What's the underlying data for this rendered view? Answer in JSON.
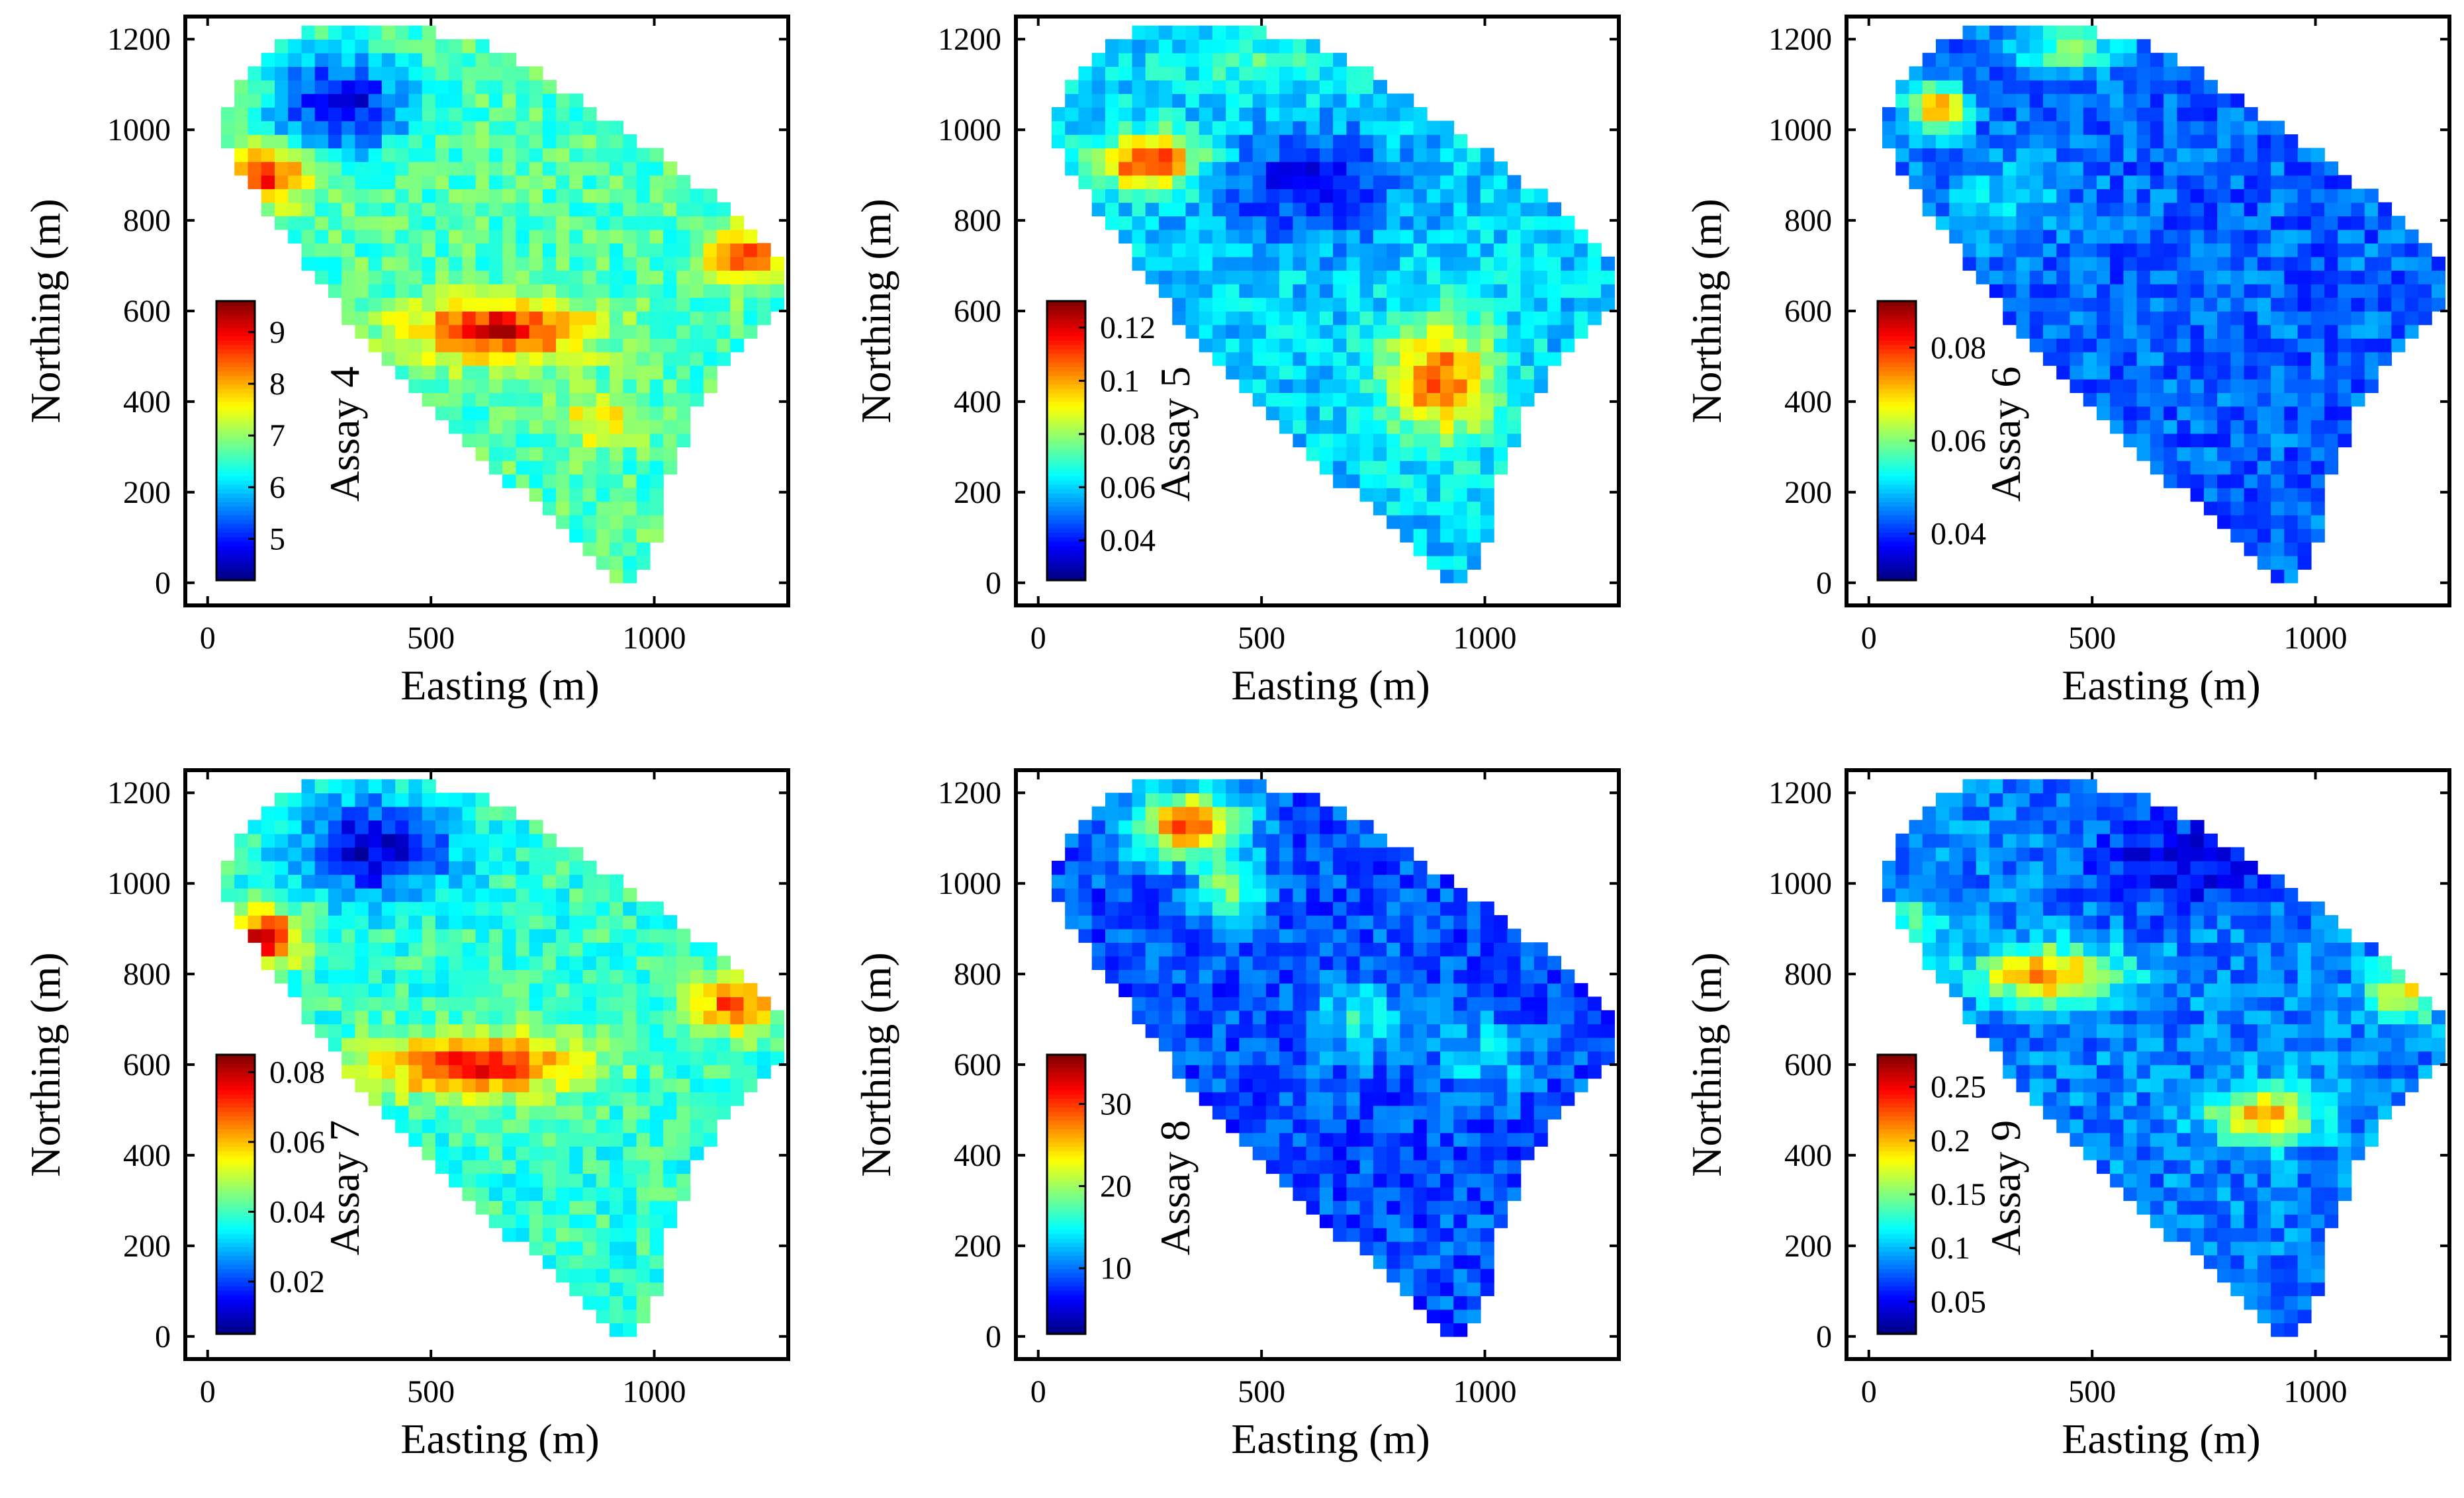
{
  "chart_data": [
    {
      "type": "heatmap",
      "title": "",
      "xlabel": "Easting (m)",
      "ylabel": "Northing (m)",
      "xlim": [
        -50,
        1300
      ],
      "ylim": [
        -50,
        1250
      ],
      "xticks": [
        0,
        500,
        1000
      ],
      "yticks": [
        0,
        200,
        400,
        600,
        800,
        1000,
        1200
      ],
      "colorbar": {
        "label": "Assay 4",
        "range": [
          4.2,
          9.6
        ],
        "ticks": [
          5,
          6,
          7,
          8,
          9
        ],
        "tick_labels": [
          "5",
          "6",
          "7",
          "8",
          "9"
        ]
      },
      "colormap": "jet",
      "field": {
        "base": 0.45,
        "anomalies": [
          {
            "x": 130,
            "y": 900,
            "amp": 0.45,
            "sx": 90,
            "sy": 60
          },
          {
            "x": 650,
            "y": 560,
            "amp": 0.45,
            "sx": 200,
            "sy": 70
          },
          {
            "x": 1200,
            "y": 720,
            "amp": 0.4,
            "sx": 80,
            "sy": 60
          },
          {
            "x": 300,
            "y": 1060,
            "amp": -0.35,
            "sx": 150,
            "sy": 110
          },
          {
            "x": 880,
            "y": 360,
            "amp": 0.2,
            "sx": 90,
            "sy": 60
          }
        ]
      }
    },
    {
      "type": "heatmap",
      "title": "",
      "xlabel": "Easting (m)",
      "ylabel": "Northing (m)",
      "xlim": [
        -50,
        1300
      ],
      "ylim": [
        -50,
        1250
      ],
      "xticks": [
        0,
        500,
        1000
      ],
      "yticks": [
        0,
        200,
        400,
        600,
        800,
        1000,
        1200
      ],
      "colorbar": {
        "label": "Assay 5",
        "range": [
          0.025,
          0.13
        ],
        "ticks": [
          0.04,
          0.06,
          0.08,
          0.1,
          0.12
        ],
        "tick_labels": [
          "0.04",
          "0.06",
          "0.08",
          "0.1",
          "0.12"
        ]
      },
      "colormap": "jet",
      "field": {
        "base": 0.33,
        "anomalies": [
          {
            "x": 250,
            "y": 930,
            "amp": 0.55,
            "sx": 110,
            "sy": 60
          },
          {
            "x": 900,
            "y": 450,
            "amp": 0.45,
            "sx": 120,
            "sy": 130
          },
          {
            "x": 500,
            "y": 1150,
            "amp": 0.1,
            "sx": 200,
            "sy": 80
          },
          {
            "x": 600,
            "y": 880,
            "amp": -0.2,
            "sx": 200,
            "sy": 120
          }
        ]
      }
    },
    {
      "type": "heatmap",
      "title": "",
      "xlabel": "Easting (m)",
      "ylabel": "Northing (m)",
      "xlim": [
        -50,
        1300
      ],
      "ylim": [
        -50,
        1250
      ],
      "xticks": [
        0,
        500,
        1000
      ],
      "yticks": [
        0,
        200,
        400,
        600,
        800,
        1000,
        1200
      ],
      "colorbar": {
        "label": "Assay 6",
        "range": [
          0.03,
          0.09
        ],
        "ticks": [
          0.04,
          0.06,
          0.08
        ],
        "tick_labels": [
          "0.04",
          "0.06",
          "0.08"
        ]
      },
      "colormap": "jet",
      "field": {
        "base": 0.22,
        "anomalies": [
          {
            "x": 150,
            "y": 1050,
            "amp": 0.6,
            "sx": 60,
            "sy": 50
          },
          {
            "x": 450,
            "y": 1180,
            "amp": 0.25,
            "sx": 120,
            "sy": 60
          },
          {
            "x": 300,
            "y": 850,
            "amp": 0.1,
            "sx": 150,
            "sy": 100
          }
        ]
      }
    },
    {
      "type": "heatmap",
      "title": "",
      "xlabel": "Easting (m)",
      "ylabel": "Northing (m)",
      "xlim": [
        -50,
        1300
      ],
      "ylim": [
        -50,
        1250
      ],
      "xticks": [
        0,
        500,
        1000
      ],
      "yticks": [
        0,
        200,
        400,
        600,
        800,
        1000,
        1200
      ],
      "colorbar": {
        "label": "Assay 7",
        "range": [
          0.005,
          0.085
        ],
        "ticks": [
          0.02,
          0.04,
          0.06,
          0.08
        ],
        "tick_labels": [
          "0.02",
          "0.04",
          "0.06",
          "0.08"
        ]
      },
      "colormap": "jet",
      "field": {
        "base": 0.42,
        "anomalies": [
          {
            "x": 130,
            "y": 880,
            "amp": 0.5,
            "sx": 80,
            "sy": 60
          },
          {
            "x": 600,
            "y": 600,
            "amp": 0.45,
            "sx": 230,
            "sy": 70
          },
          {
            "x": 1180,
            "y": 730,
            "amp": 0.4,
            "sx": 90,
            "sy": 60
          },
          {
            "x": 380,
            "y": 1080,
            "amp": -0.35,
            "sx": 170,
            "sy": 110
          }
        ]
      }
    },
    {
      "type": "heatmap",
      "title": "",
      "xlabel": "Easting (m)",
      "ylabel": "Northing (m)",
      "xlim": [
        -50,
        1300
      ],
      "ylim": [
        -50,
        1250
      ],
      "xticks": [
        0,
        500,
        1000
      ],
      "yticks": [
        0,
        200,
        400,
        600,
        800,
        1000,
        1200
      ],
      "colorbar": {
        "label": "Assay 8",
        "range": [
          2,
          36
        ],
        "ticks": [
          10,
          20,
          30
        ],
        "tick_labels": [
          "10",
          "20",
          "30"
        ]
      },
      "colormap": "jet",
      "field": {
        "base": 0.2,
        "anomalies": [
          {
            "x": 340,
            "y": 1130,
            "amp": 0.6,
            "sx": 120,
            "sy": 70
          },
          {
            "x": 430,
            "y": 990,
            "amp": 0.3,
            "sx": 80,
            "sy": 60
          },
          {
            "x": 720,
            "y": 700,
            "amp": 0.2,
            "sx": 100,
            "sy": 80
          },
          {
            "x": 1000,
            "y": 620,
            "amp": 0.15,
            "sx": 100,
            "sy": 80
          }
        ]
      }
    },
    {
      "type": "heatmap",
      "title": "",
      "xlabel": "Easting (m)",
      "ylabel": "Northing (m)",
      "xlim": [
        -50,
        1300
      ],
      "ylim": [
        -50,
        1250
      ],
      "xticks": [
        0,
        500,
        1000
      ],
      "yticks": [
        0,
        200,
        400,
        600,
        800,
        1000,
        1200
      ],
      "colorbar": {
        "label": "Assay 9",
        "range": [
          0.02,
          0.28
        ],
        "ticks": [
          0.05,
          0.1,
          0.15,
          0.2,
          0.25
        ],
        "tick_labels": [
          "0.05",
          "0.1",
          "0.15",
          "0.2",
          "0.25"
        ]
      },
      "colormap": "jet",
      "field": {
        "base": 0.25,
        "anomalies": [
          {
            "x": 400,
            "y": 800,
            "amp": 0.5,
            "sx": 160,
            "sy": 60
          },
          {
            "x": 880,
            "y": 490,
            "amp": 0.45,
            "sx": 120,
            "sy": 60
          },
          {
            "x": 1200,
            "y": 760,
            "amp": 0.4,
            "sx": 80,
            "sy": 60
          },
          {
            "x": 100,
            "y": 900,
            "amp": 0.25,
            "sx": 60,
            "sy": 60
          },
          {
            "x": 700,
            "y": 1050,
            "amp": -0.15,
            "sx": 200,
            "sy": 100
          }
        ]
      }
    }
  ]
}
